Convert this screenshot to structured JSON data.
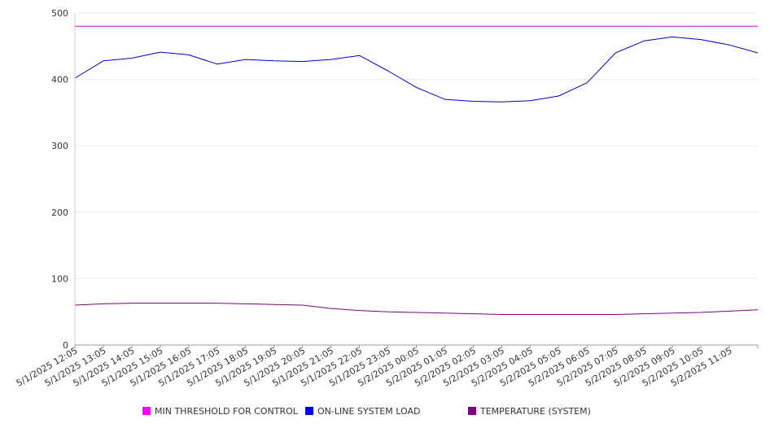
{
  "chart_data": {
    "type": "line",
    "ylim": [
      0,
      500
    ],
    "y_ticks": [
      "0",
      "100",
      "200",
      "300",
      "400",
      "500"
    ],
    "x_tick_labels": [
      "5/1/2025 12:05",
      "5/1/2025 13:05",
      "5/1/2025 14:05",
      "5/1/2025 15:05",
      "5/1/2025 16:05",
      "5/1/2025 17:05",
      "5/1/2025 18:05",
      "5/1/2025 19:05",
      "5/1/2025 20:05",
      "5/1/2025 21:05",
      "5/1/2025 22:05",
      "5/1/2025 23:05",
      "5/2/2025 00:05",
      "5/2/2025 01:05",
      "5/2/2025 02:05",
      "5/2/2025 03:05",
      "5/2/2025 04:05",
      "5/2/2025 05:05",
      "5/2/2025 06:05",
      "5/2/2025 07:05",
      "5/2/2025 08:05",
      "5/2/2025 09:05",
      "5/2/2025 10:05",
      "5/2/2025 11:05"
    ],
    "grid": true,
    "legend_position": "bottom",
    "series": [
      {
        "name": "MIN THRESHOLD FOR CONTROL",
        "color": "#cc00cc",
        "values": [
          480,
          480,
          480,
          480,
          480,
          480,
          480,
          480,
          480,
          480,
          480,
          480,
          480,
          480,
          480,
          480,
          480,
          480,
          480,
          480,
          480,
          480,
          480,
          480,
          480
        ]
      },
      {
        "name": "ON-LINE SYSTEM LOAD",
        "color": "#0000cc",
        "values": [
          402,
          428,
          432,
          441,
          437,
          423,
          430,
          428,
          427,
          430,
          436,
          413,
          388,
          370,
          367,
          366,
          368,
          375,
          395,
          440,
          458,
          464,
          460,
          452,
          440
        ]
      },
      {
        "name": "TEMPERATURE (SYSTEM)",
        "color": "#800080",
        "values": [
          60,
          62,
          63,
          63,
          63,
          63,
          62,
          61,
          60,
          55,
          52,
          50,
          49,
          48,
          47,
          46,
          46,
          46,
          46,
          46,
          47,
          48,
          49,
          51,
          53
        ]
      }
    ]
  }
}
